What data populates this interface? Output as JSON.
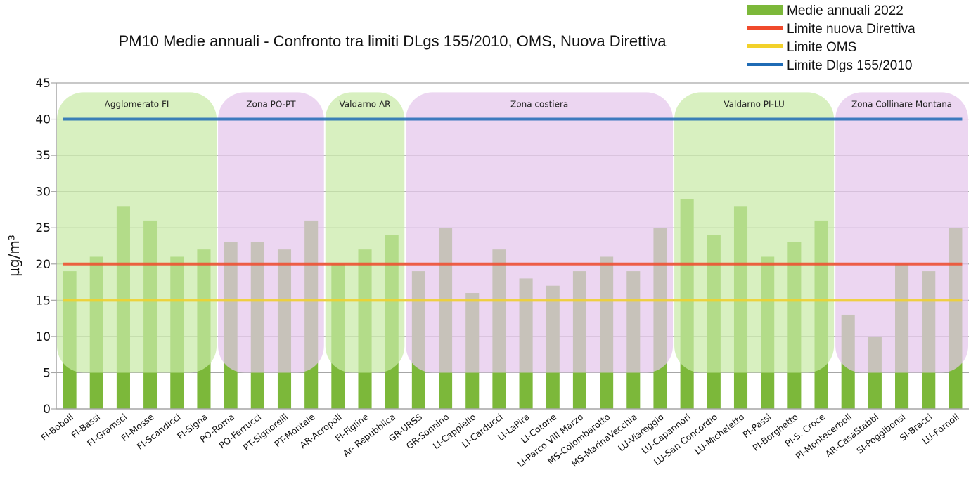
{
  "chart_data": {
    "type": "bar",
    "title": "PM10 Medie annuali - Confronto tra limiti DLgs 155/2010, OMS, Nuova Direttiva",
    "xlabel": "",
    "ylabel": "µg/m³",
    "ylim": [
      0,
      45
    ],
    "yticks": [
      0,
      5,
      10,
      15,
      20,
      25,
      30,
      35,
      40,
      45
    ],
    "grid": true,
    "legend_position": "top-right",
    "categories": [
      "FI-Boboli",
      "FI-Bassi",
      "FI-Gramsci",
      "FI-Mosse",
      "FI-Scandicci",
      "FI-Signa",
      "PO-Roma",
      "PO-Ferrucci",
      "PT-Signorelli",
      "PT-Montale",
      "AR-Acropoli",
      "FI-Figline",
      "Ar- Repubblica",
      "GR-URSS",
      "GR-Sonnino",
      "LI-Cappiello",
      "LI-Carducci",
      "LI-LaPira",
      "LI-Cotone",
      "LI-Parco VIII Marzo",
      "MS-Colombarotto",
      "MS-MarinaVecchia",
      "LU-Viareggio",
      "LU-Capannori",
      "LU-San Concordio",
      "LU-Micheletto",
      "PI-Passi",
      "PI-Borghetto",
      "PI-S. Croce",
      "PI-Montecerboli",
      "AR-CasaStabbi",
      "SI-Poggibonsi",
      "SI-Bracci",
      "LU-Fornoli"
    ],
    "series": [
      {
        "name": "Medie annuali 2022",
        "kind": "bar",
        "color": "#7cb83a",
        "values": [
          19,
          21,
          28,
          26,
          21,
          22,
          23,
          23,
          22,
          26,
          20,
          22,
          24,
          19,
          25,
          16,
          22,
          18,
          17,
          19,
          21,
          19,
          25,
          29,
          24,
          28,
          21,
          23,
          26,
          13,
          10,
          20,
          19,
          25
        ]
      },
      {
        "name": "Limite nuova Direttiva",
        "kind": "line",
        "color": "#f04a2c",
        "value": 20
      },
      {
        "name": "Limite OMS",
        "kind": "line",
        "color": "#f2d12a",
        "value": 15
      },
      {
        "name": "Limite Dlgs 155/2010",
        "kind": "line",
        "color": "#1f6bb5",
        "value": 40
      }
    ],
    "zones": [
      {
        "label": "Agglomerato FI",
        "start": 0,
        "end": 5,
        "color": "#c9eaa8"
      },
      {
        "label": "Zona PO-PT",
        "start": 6,
        "end": 9,
        "color": "#e5c6ec"
      },
      {
        "label": "Valdarno AR",
        "start": 10,
        "end": 12,
        "color": "#c9eaa8"
      },
      {
        "label": "Zona costiera",
        "start": 13,
        "end": 22,
        "color": "#e5c6ec"
      },
      {
        "label": "Valdarno  PI-LU",
        "start": 23,
        "end": 28,
        "color": "#c9eaa8"
      },
      {
        "label": "Zona  Collinare Montana",
        "start": 29,
        "end": 33,
        "color": "#e5c6ec"
      }
    ]
  }
}
